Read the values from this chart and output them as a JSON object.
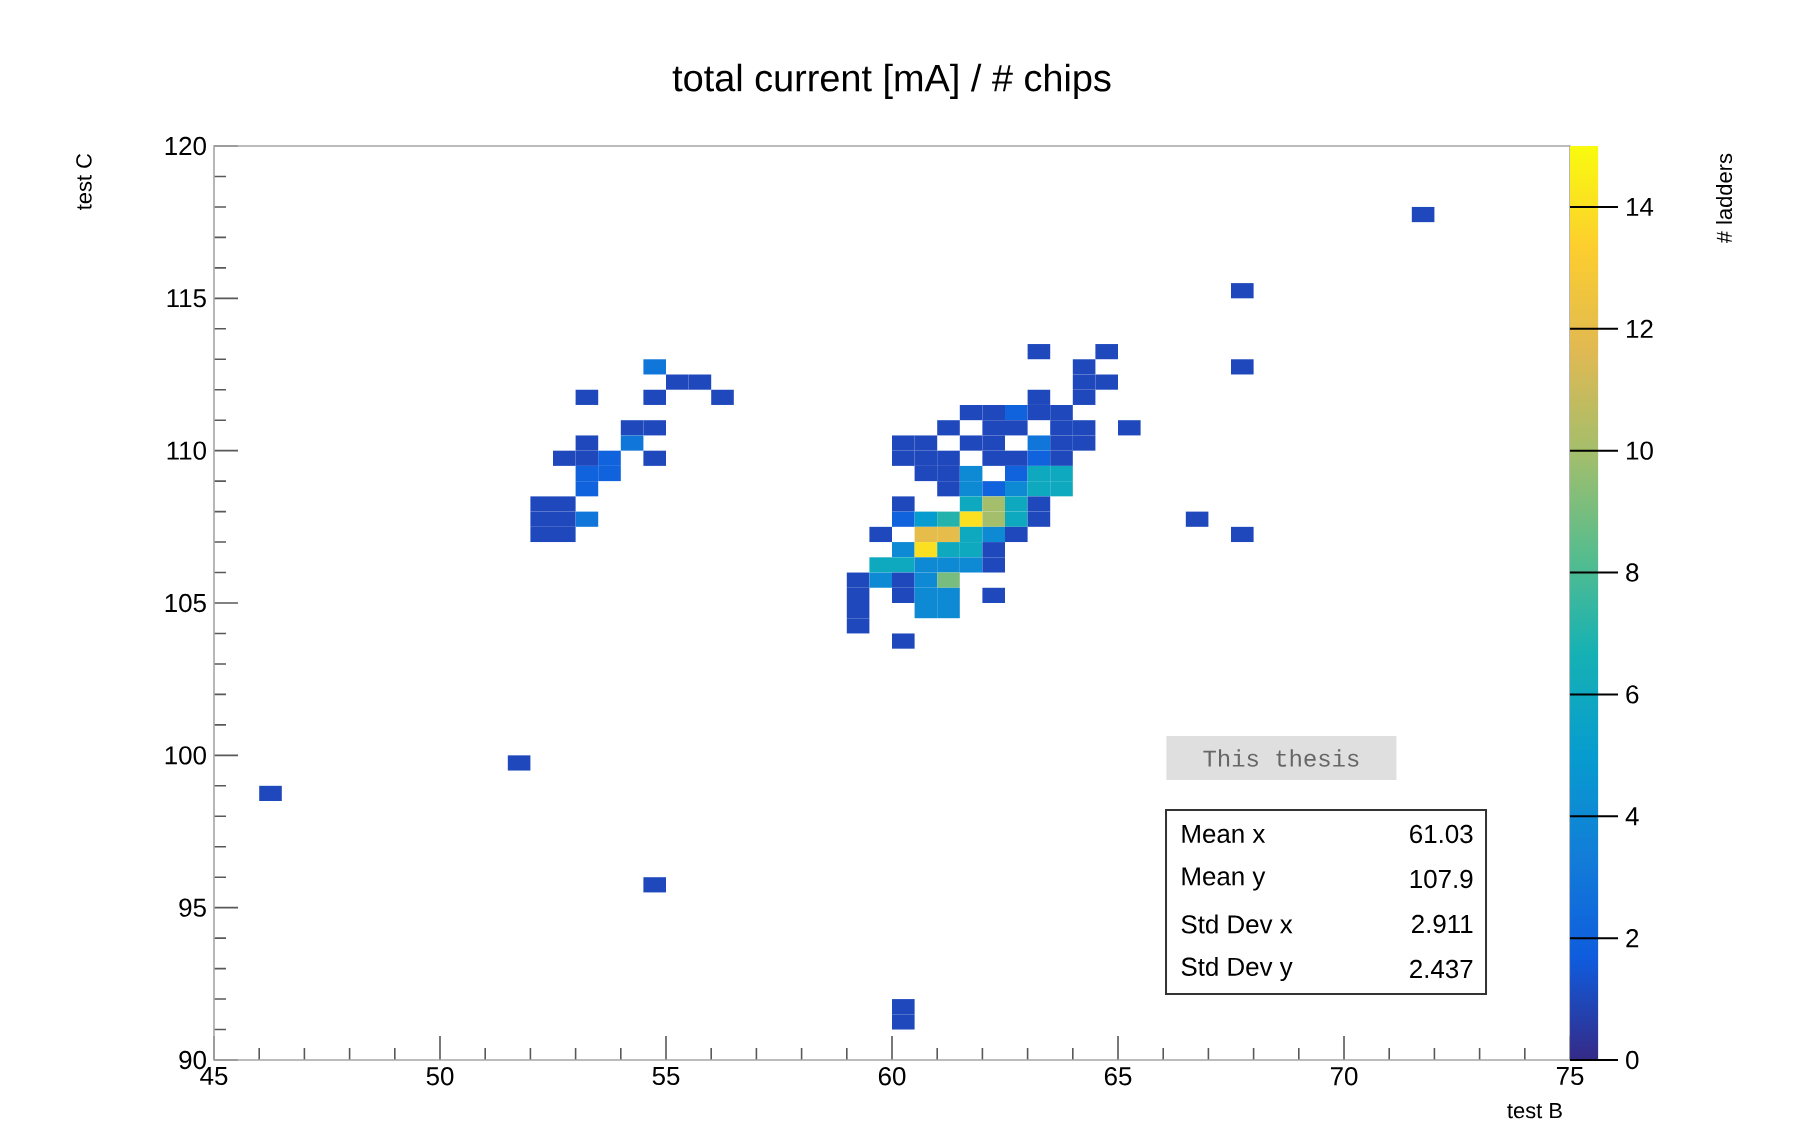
{
  "chart_data": {
    "type": "scatter",
    "title": "total current [mA] / # chips",
    "xlabel": "test B",
    "ylabel": "test C",
    "clabel": "# ladders",
    "xlim": [
      45,
      75
    ],
    "ylim": [
      90,
      120
    ],
    "xticks": [
      45,
      50,
      55,
      60,
      65,
      70,
      75
    ],
    "yticks": [
      90,
      95,
      100,
      105,
      110,
      115,
      120
    ],
    "clim": [
      0,
      15
    ],
    "cticks": [
      0,
      2,
      4,
      6,
      8,
      10,
      12,
      14
    ],
    "marker": "square",
    "grid": false,
    "annotations": [
      "This thesis",
      "Mean x",
      "61.03",
      "Mean y",
      "107.9",
      "Std Dev x",
      "2.911",
      "Std Dev y",
      "2.437"
    ],
    "x": [
      71.75,
      67.75,
      67.75,
      66.75,
      67.75,
      51.75,
      46.25,
      54.75,
      60.25,
      60.25,
      54.75,
      55.25,
      55.75,
      53.25,
      54.75,
      56.25,
      54.25,
      54.75,
      54.25,
      53.25,
      54.75,
      52.75,
      53.25,
      53.75,
      53.75,
      53.25,
      53.25,
      52.25,
      52.75,
      52.25,
      52.75,
      52.25,
      52.75,
      53.25,
      63.25,
      64.75,
      64.25,
      64.25,
      64.75,
      63.25,
      64.25,
      61.75,
      62.25,
      62.75,
      63.25,
      63.75,
      61.25,
      62.25,
      62.75,
      63.75,
      64.25,
      65.25,
      60.25,
      60.75,
      61.75,
      62.25,
      63.25,
      63.75,
      64.25,
      60.25,
      60.75,
      61.25,
      62.25,
      62.75,
      63.25,
      63.75,
      60.75,
      61.25,
      61.75,
      62.75,
      63.25,
      63.75,
      61.25,
      61.75,
      62.25,
      62.75,
      63.25,
      63.75,
      60.25,
      61.75,
      62.25,
      62.75,
      63.25,
      60.25,
      60.75,
      61.25,
      61.75,
      62.25,
      62.75,
      63.25,
      59.75,
      60.75,
      61.25,
      61.75,
      62.25,
      62.75,
      60.25,
      60.75,
      61.25,
      61.75,
      62.25,
      59.75,
      60.25,
      60.75,
      61.25,
      61.75,
      62.25,
      59.25,
      59.75,
      60.25,
      60.75,
      61.25,
      59.25,
      60.25,
      60.75,
      61.25,
      62.25,
      59.25,
      60.75,
      61.25,
      59.25,
      60.25
    ],
    "values": [
      117.75,
      115.25,
      112.75,
      107.75,
      107.25,
      99.75,
      98.75,
      95.75,
      91.75,
      91.25,
      112.75,
      112.25,
      112.25,
      111.75,
      111.75,
      111.75,
      110.75,
      110.75,
      110.25,
      110.25,
      109.75,
      109.75,
      109.75,
      109.75,
      109.25,
      108.75,
      109.25,
      107.25,
      107.25,
      107.75,
      107.75,
      108.25,
      108.25,
      107.75,
      113.25,
      113.25,
      112.75,
      112.25,
      112.25,
      111.75,
      111.75,
      111.25,
      111.25,
      111.25,
      111.25,
      111.25,
      110.75,
      110.75,
      110.75,
      110.75,
      110.75,
      110.75,
      110.25,
      110.25,
      110.25,
      110.25,
      110.25,
      110.25,
      110.25,
      109.75,
      109.75,
      109.75,
      109.75,
      109.75,
      109.75,
      109.75,
      109.25,
      109.25,
      109.25,
      109.25,
      109.25,
      109.25,
      108.75,
      108.75,
      108.75,
      108.75,
      108.75,
      108.75,
      108.25,
      108.25,
      108.25,
      108.25,
      108.25,
      107.75,
      107.75,
      107.75,
      107.75,
      107.75,
      107.75,
      107.75,
      107.25,
      107.25,
      107.25,
      107.25,
      107.25,
      107.25,
      106.75,
      106.75,
      106.75,
      106.75,
      106.75,
      106.25,
      106.25,
      106.25,
      106.25,
      106.25,
      106.25,
      105.75,
      105.75,
      105.75,
      105.75,
      105.75,
      105.25,
      105.25,
      105.25,
      105.25,
      105.25,
      104.75,
      104.75,
      104.75,
      104.25,
      103.75
    ],
    "cvalues": [
      1,
      1,
      1,
      1,
      1,
      1,
      1,
      1,
      1,
      1,
      3,
      1,
      1,
      1,
      1,
      1,
      1,
      1,
      3,
      1,
      1,
      1,
      1,
      2,
      2,
      2,
      2,
      1,
      1,
      1,
      1,
      1,
      1,
      3,
      1,
      1,
      1,
      1,
      1,
      1,
      1,
      1,
      1,
      2,
      1,
      1,
      1,
      1,
      1,
      1,
      1,
      1,
      1,
      1,
      1,
      1,
      3,
      1,
      1,
      1,
      1,
      1,
      1,
      1,
      2,
      1,
      1,
      1,
      4,
      2,
      6,
      6,
      1,
      4,
      2,
      4,
      6,
      6,
      1,
      6,
      10,
      6,
      1,
      2,
      5,
      7,
      14,
      10,
      6,
      1,
      1,
      12,
      12,
      6,
      4,
      1,
      4,
      14,
      6,
      6,
      1,
      6,
      6,
      4,
      4,
      4,
      1,
      1,
      4,
      1,
      4,
      9,
      1,
      1,
      4,
      4,
      1,
      1,
      4,
      4,
      1,
      1
    ]
  }
}
